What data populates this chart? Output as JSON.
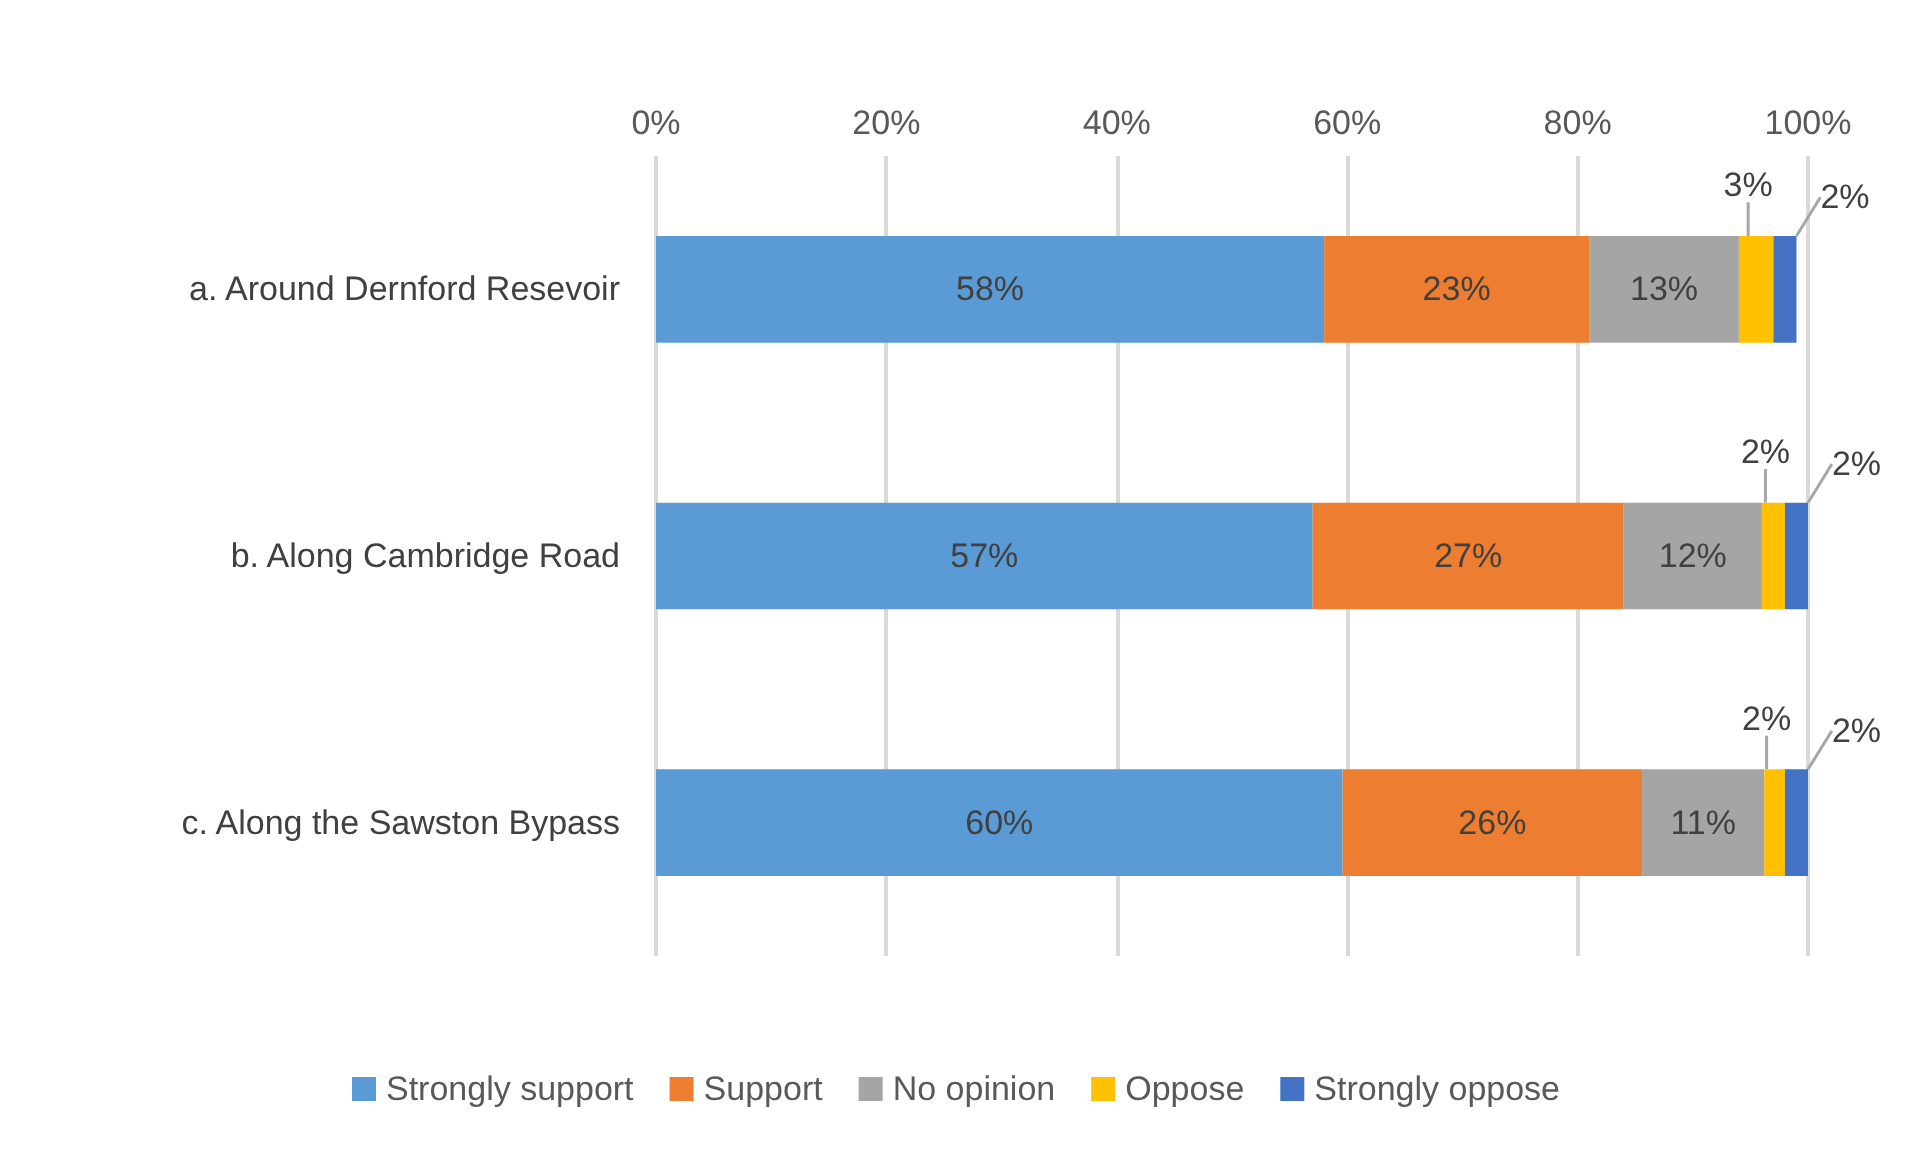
{
  "chart_data": {
    "type": "bar",
    "orientation": "horizontal",
    "stacked": true,
    "categories": [
      "a. Around Dernford Resevoir",
      "b. Along Cambridge Road",
      "c. Along the Sawston Bypass"
    ],
    "series": [
      {
        "name": "Strongly support",
        "color": "#5b9bd5",
        "values": [
          58,
          57,
          59.6
        ],
        "value_labels": [
          "58%",
          "57%",
          "60%"
        ]
      },
      {
        "name": "Support",
        "color": "#ed7d31",
        "values": [
          23,
          27,
          26
        ],
        "value_labels": [
          "23%",
          "27%",
          "26%"
        ]
      },
      {
        "name": "No opinion",
        "color": "#a5a5a5",
        "values": [
          13,
          12,
          10.6
        ],
        "value_labels": [
          "13%",
          "12%",
          "11%"
        ]
      },
      {
        "name": "Oppose",
        "color": "#ffc000",
        "values": [
          3,
          2,
          1.8
        ],
        "value_labels": [
          "3%",
          "2%",
          "2%"
        ]
      },
      {
        "name": "Strongly oppose",
        "color": "#4472c4",
        "values": [
          2,
          2,
          2
        ],
        "value_labels": [
          "2%",
          "2%",
          "2%"
        ]
      }
    ],
    "xlim": [
      0,
      100
    ],
    "xticks": [
      {
        "value": 0,
        "label": "0%"
      },
      {
        "value": 20,
        "label": "20%"
      },
      {
        "value": 40,
        "label": "40%"
      },
      {
        "value": 60,
        "label": "60%"
      },
      {
        "value": 80,
        "label": "80%"
      },
      {
        "value": 100,
        "label": "100%"
      }
    ],
    "grid": "x",
    "legend": "bottom"
  }
}
